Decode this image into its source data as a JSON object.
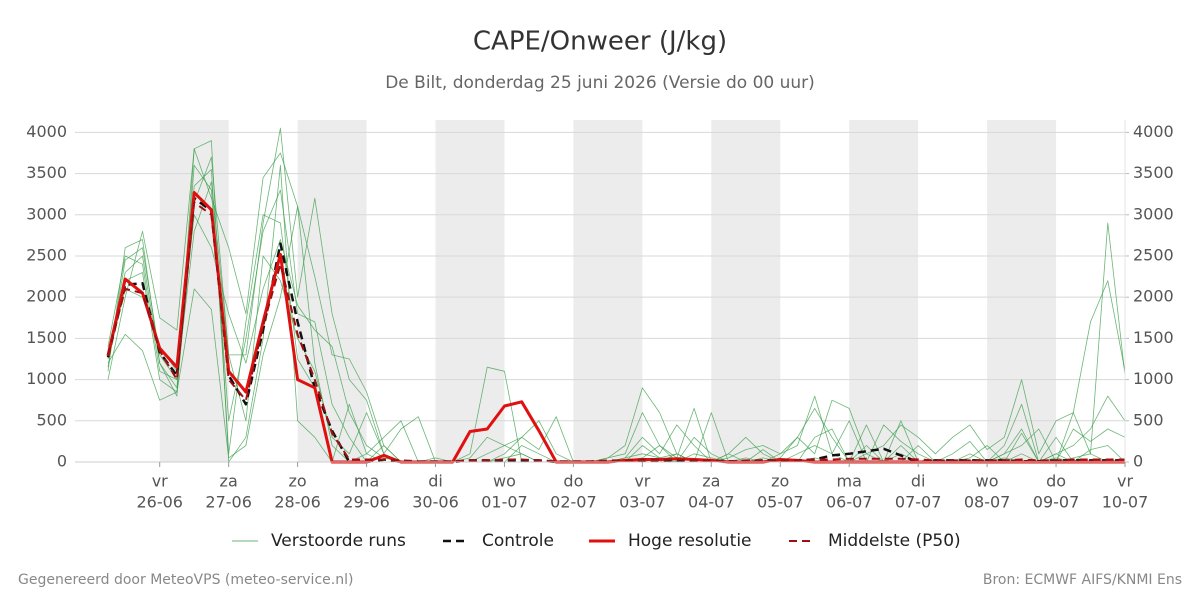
{
  "chart_data": {
    "type": "line",
    "title": "CAPE/Onweer (J/kg)",
    "subtitle": "De Bilt, donderdag 25 juni 2026 (Versie do 00 uur)",
    "footer_left": "Gegenereerd door MeteoVPS (meteo-service.nl)",
    "footer_right": "Bron: ECMWF AIFS/KNMI Ens",
    "categories": [
      null,
      null,
      null,
      {
        "day": "vr",
        "date": "26-06"
      },
      null,
      null,
      null,
      {
        "day": "za",
        "date": "27-06"
      },
      null,
      null,
      null,
      {
        "day": "zo",
        "date": "28-06"
      },
      null,
      null,
      null,
      {
        "day": "ma",
        "date": "29-06"
      },
      null,
      null,
      null,
      {
        "day": "di",
        "date": "30-06"
      },
      null,
      null,
      null,
      {
        "day": "wo",
        "date": "01-07"
      },
      null,
      null,
      null,
      {
        "day": "do",
        "date": "02-07"
      },
      null,
      null,
      null,
      {
        "day": "vr",
        "date": "03-07"
      },
      null,
      null,
      null,
      {
        "day": "za",
        "date": "04-07"
      },
      null,
      null,
      null,
      {
        "day": "zo",
        "date": "05-07"
      },
      null,
      null,
      null,
      {
        "day": "ma",
        "date": "06-07"
      },
      null,
      null,
      null,
      {
        "day": "di",
        "date": "07-07"
      },
      null,
      null,
      null,
      {
        "day": "wo",
        "date": "08-07"
      },
      null,
      null,
      null,
      {
        "day": "do",
        "date": "09-07"
      },
      null,
      null,
      null,
      {
        "day": "vr",
        "date": "10-07"
      }
    ],
    "ylim": [
      0,
      4150
    ],
    "yticks": [
      0,
      500,
      1000,
      1500,
      2000,
      2500,
      3000,
      3500,
      4000
    ],
    "y2lim": [
      0,
      4150
    ],
    "y2ticks": [
      0,
      500,
      1000,
      1500,
      2000,
      2500,
      3000,
      3500,
      4000
    ],
    "grid": true,
    "legend": "bottom",
    "series": [
      {
        "name": "Verstoorde runs",
        "color": "#3a9e4a",
        "dashed": false,
        "width": 0.8,
        "members": [
          [
            1100,
            2600,
            2700,
            1200,
            800,
            3800,
            3900,
            0,
            300,
            1500,
            3600,
            500,
            300,
            0,
            0,
            100,
            300,
            500,
            0,
            0,
            0,
            100,
            1150,
            1100,
            0,
            0,
            0,
            0,
            0,
            50,
            200,
            900,
            600,
            100,
            0,
            600,
            0,
            0,
            0,
            100,
            200,
            800,
            100,
            0,
            0,
            0,
            0,
            200,
            0,
            0,
            0,
            0,
            100,
            200,
            400,
            0,
            600,
            100,
            2900,
            1050
          ],
          [
            1000,
            2000,
            2800,
            1750,
            1600,
            3800,
            3200,
            2600,
            1800,
            3450,
            3750,
            3100,
            2250,
            1300,
            1250,
            850,
            200,
            0,
            0,
            50,
            0,
            0,
            100,
            200,
            300,
            500,
            100,
            0,
            0,
            0,
            50,
            300,
            100,
            450,
            200,
            0,
            50,
            150,
            200,
            100,
            300,
            100,
            750,
            650,
            100,
            200,
            450,
            300,
            100,
            300,
            450,
            150,
            300,
            1000,
            100,
            500,
            600,
            1700,
            2200,
            1100
          ],
          [
            1400,
            2500,
            2400,
            1100,
            1000,
            2800,
            3400,
            1300,
            1300,
            2900,
            4050,
            2000,
            3200,
            1800,
            1000,
            750,
            100,
            400,
            550,
            0,
            0,
            0,
            0,
            100,
            300,
            150,
            550,
            0,
            0,
            0,
            0,
            200,
            50,
            100,
            0,
            0,
            100,
            300,
            100,
            0,
            100,
            200,
            100,
            500,
            0,
            450,
            250,
            100,
            0,
            0,
            100,
            0,
            200,
            700,
            0,
            0,
            400,
            250,
            400,
            300
          ],
          [
            1200,
            1550,
            1350,
            750,
            850,
            2100,
            1850,
            50,
            200,
            1300,
            2000,
            3100,
            1200,
            200,
            0,
            0,
            0,
            0,
            0,
            0,
            0,
            0,
            0,
            0,
            0,
            0,
            0,
            0,
            0,
            0,
            0,
            0,
            50,
            0,
            0,
            0,
            0,
            50,
            0,
            0,
            0,
            0,
            0,
            0,
            0,
            0,
            0,
            0,
            0,
            0,
            0,
            0,
            0,
            0,
            0,
            50,
            0,
            0,
            0,
            0
          ],
          [
            1300,
            2300,
            2500,
            1200,
            900,
            3600,
            3300,
            500,
            1500,
            2800,
            3300,
            1800,
            1700,
            700,
            300,
            0,
            200,
            0,
            0,
            0,
            0,
            50,
            300,
            200,
            100,
            0,
            0,
            0,
            0,
            50,
            100,
            600,
            200,
            50,
            650,
            0,
            100,
            0,
            0,
            50,
            300,
            650,
            300,
            0,
            100,
            0,
            100,
            0,
            0,
            100,
            250,
            0,
            100,
            400,
            0,
            100,
            200,
            400,
            800,
            500
          ],
          [
            1250,
            2100,
            2000,
            1400,
            1100,
            3000,
            2600,
            1800,
            1200,
            2100,
            2700,
            1900,
            1600,
            1400,
            600,
            200,
            50,
            0,
            0,
            0,
            0,
            0,
            0,
            50,
            100,
            0,
            0,
            0,
            0,
            0,
            50,
            100,
            50,
            0,
            100,
            50,
            0,
            0,
            50,
            0,
            0,
            50,
            0,
            0,
            200,
            0,
            0,
            0,
            0,
            0,
            0,
            0,
            50,
            0,
            0,
            0,
            50,
            100,
            0,
            0
          ],
          [
            1150,
            2450,
            2600,
            1300,
            1000,
            3350,
            3550,
            100,
            1700,
            3000,
            2900,
            1250,
            900,
            0,
            700,
            100,
            0,
            0,
            0,
            0,
            0,
            0,
            0,
            0,
            200,
            100,
            0,
            0,
            0,
            0,
            0,
            50,
            200,
            0,
            300,
            100,
            0,
            0,
            150,
            0,
            0,
            300,
            400,
            0,
            0,
            0,
            200,
            0,
            0,
            0,
            50,
            200,
            0,
            350,
            0,
            100,
            0,
            150,
            200,
            0
          ],
          [
            1350,
            2200,
            2300,
            1000,
            850,
            3150,
            3700,
            1300,
            500,
            2500,
            2200,
            1500,
            1100,
            300,
            100,
            600,
            100,
            0,
            0,
            0,
            0,
            0,
            0,
            0,
            0,
            0,
            0,
            0,
            0,
            0,
            0,
            0,
            0,
            100,
            0,
            0,
            0,
            0,
            0,
            0,
            0,
            0,
            0,
            0,
            450,
            0,
            500,
            0,
            0,
            0,
            0,
            0,
            0,
            100,
            0,
            300,
            0,
            0,
            0,
            0
          ]
        ]
      },
      {
        "name": "Controle",
        "color": "#111111",
        "dashed": true,
        "width": 2.5,
        "values": [
          1270,
          2150,
          2170,
          1330,
          1050,
          3200,
          3050,
          1050,
          700,
          1600,
          2650,
          1700,
          900,
          380,
          0,
          0,
          30,
          0,
          0,
          0,
          0,
          20,
          20,
          20,
          20,
          20,
          0,
          0,
          0,
          0,
          20,
          20,
          20,
          20,
          20,
          20,
          10,
          10,
          20,
          20,
          20,
          30,
          80,
          100,
          130,
          160,
          80,
          0,
          20,
          20,
          20,
          20,
          20,
          10,
          10,
          20,
          20,
          20,
          20,
          20
        ]
      },
      {
        "name": "Hoge resolutie",
        "color": "#e01010",
        "dashed": false,
        "width": 3,
        "values": [
          1290,
          2220,
          2050,
          1380,
          1150,
          3270,
          3060,
          1100,
          850,
          1700,
          2520,
          1000,
          900,
          0,
          0,
          0,
          80,
          0,
          0,
          0,
          0,
          370,
          400,
          680,
          730,
          380,
          0,
          0,
          0,
          0,
          20,
          30,
          30,
          40,
          30,
          20,
          0,
          0,
          0,
          30,
          20,
          0,
          0,
          0,
          0,
          0,
          0,
          0,
          0,
          0,
          0,
          0,
          0,
          0,
          0,
          0,
          0,
          0,
          0,
          0
        ]
      },
      {
        "name": "Middelste (P50)",
        "color": "#a01010",
        "dashed": true,
        "width": 2,
        "values": [
          1300,
          2100,
          2050,
          1350,
          1000,
          3150,
          3000,
          1000,
          750,
          1650,
          2400,
          1550,
          1000,
          350,
          30,
          30,
          30,
          20,
          10,
          10,
          10,
          20,
          20,
          30,
          30,
          20,
          10,
          10,
          10,
          20,
          20,
          30,
          30,
          30,
          20,
          20,
          10,
          20,
          20,
          20,
          20,
          30,
          30,
          40,
          40,
          40,
          40,
          30,
          20,
          20,
          20,
          20,
          20,
          30,
          20,
          20,
          30,
          30,
          30,
          30
        ]
      }
    ]
  }
}
